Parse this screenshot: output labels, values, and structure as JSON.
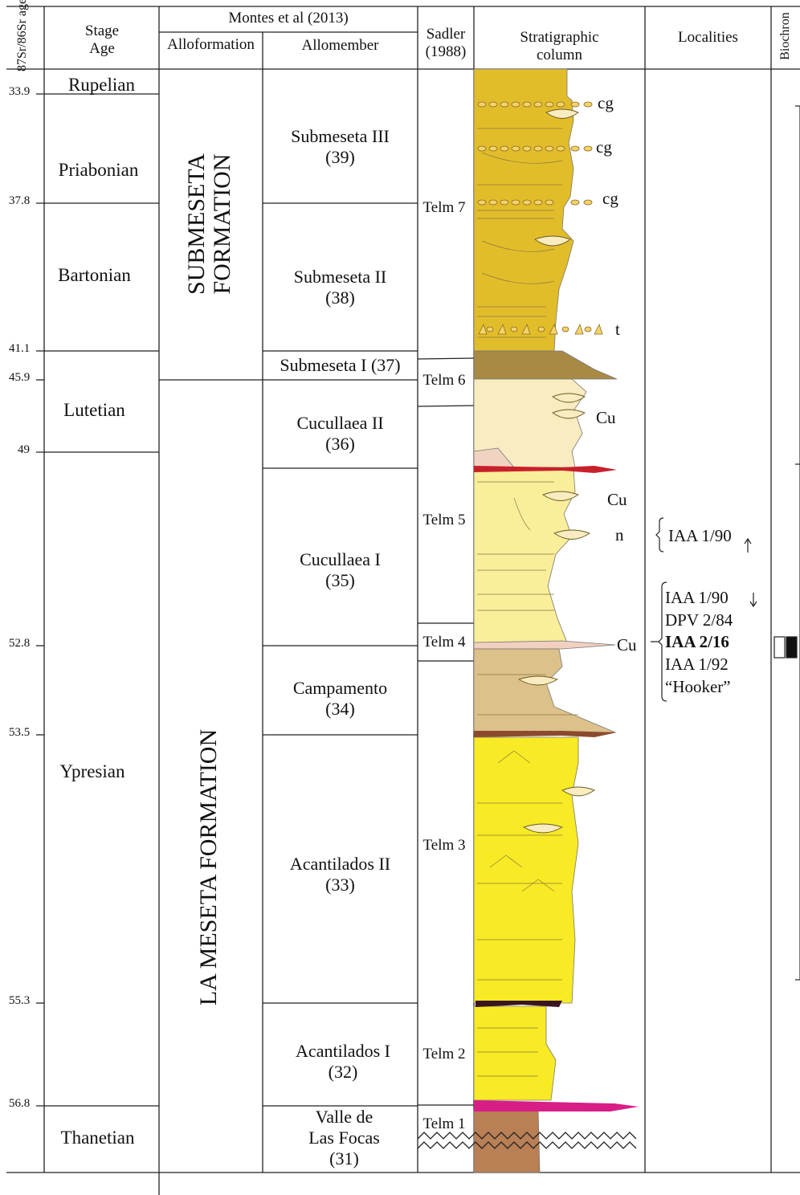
{
  "headers": {
    "sr_age": "87Sr/86Sr age",
    "stage_age": [
      "Stage",
      "Age"
    ],
    "montes": "Montes et al (2013)",
    "alloformation": "Alloformation",
    "allomember": "Allomember",
    "sadler": [
      "Sadler",
      "(1988)"
    ],
    "strat_column": [
      "Stratigraphic",
      "column"
    ],
    "localities": "Localities",
    "biochron": "Biochron"
  },
  "stages": [
    "Rupelian",
    "Priabonian",
    "Bartonian",
    "Lutetian",
    "Ypresian",
    "Thanetian"
  ],
  "ages": [
    "33.9",
    "37.8",
    "41.1",
    "45.9",
    "49",
    "52.8",
    "53.5",
    "55.3",
    "56.8"
  ],
  "formations": {
    "submeseta": [
      "SUBMESETA",
      "FORMATION"
    ],
    "la_meseta": "LA MESETA FORMATION"
  },
  "allomembers": [
    [
      "Submeseta III",
      "(39)"
    ],
    [
      "Submeseta II",
      "(38)"
    ],
    [
      "Submeseta I (37)"
    ],
    [
      "Cucullaea II",
      "(36)"
    ],
    [
      "Cucullaea I",
      "(35)"
    ],
    [
      "Campamento",
      "(34)"
    ],
    [
      "Acantilados II",
      "(33)"
    ],
    [
      "Acantilados I",
      "(32)"
    ],
    [
      "Valle de",
      "Las Focas",
      "(31)"
    ]
  ],
  "telm_units": [
    "Telm 7",
    "Telm 6",
    "Telm 5",
    "Telm 4",
    "Telm 3",
    "Telm 2",
    "Telm 1"
  ],
  "column_symbols": [
    "cg",
    "cg",
    "cg",
    "t",
    "Cu",
    "Cu",
    "n",
    "Cu"
  ],
  "localities": {
    "upper": "IAA 1/90",
    "lower": [
      "IAA 1/90",
      "DPV 2/84",
      "IAA 2/16",
      "IAA 1/92",
      "“Hooker”"
    ]
  },
  "colors": {
    "submeseta": "#e2bd2a",
    "telm6": "#a88a45",
    "cucullaea2": "#f8ecc0",
    "cucullaea1": "#faee9a",
    "campamento": "#dcc18a",
    "acantilados": "#f8ea24",
    "valle": "#b97f55",
    "red_band": "#c8202a",
    "brown_band": "#8b4a2f",
    "dark_band": "#3a1520",
    "magenta_band": "#d81e86"
  }
}
